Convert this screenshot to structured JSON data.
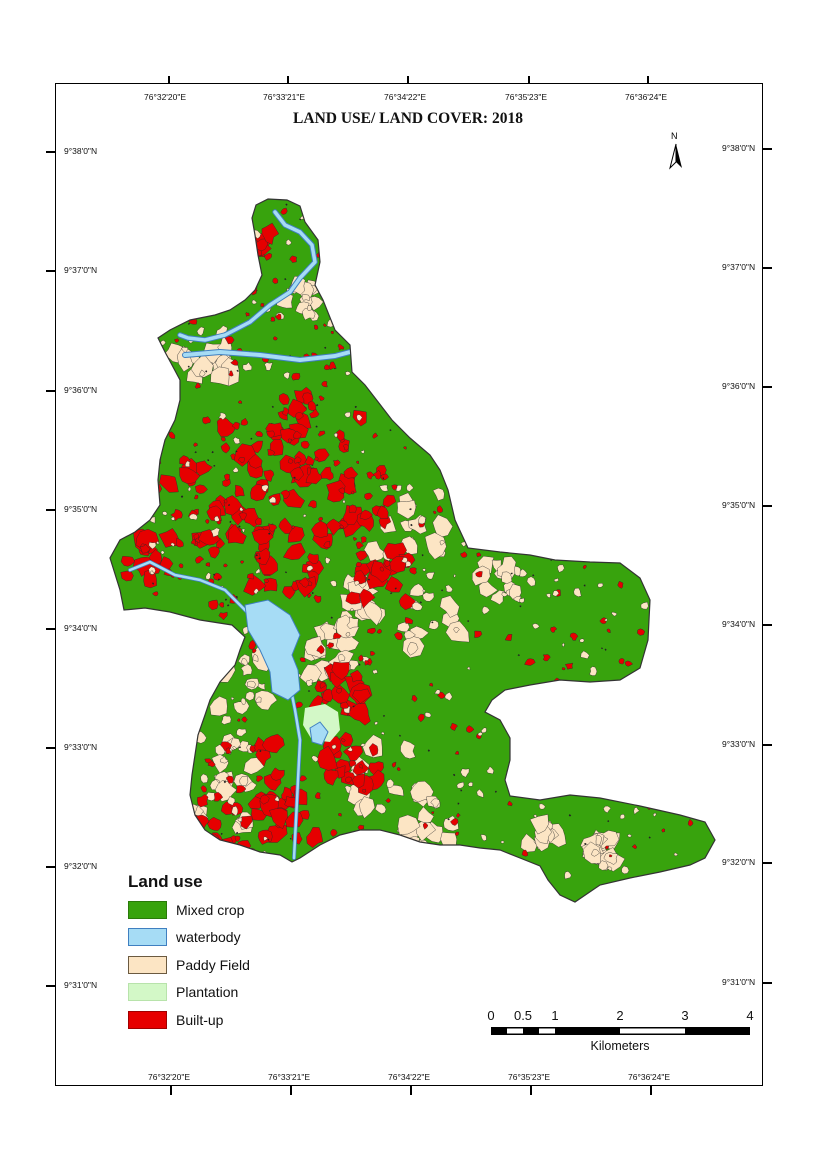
{
  "map": {
    "title": "LAND USE/ LAND COVER: 2018",
    "north_label": "N",
    "longitude_labels": [
      "76°32'20\"E",
      "76°33'21\"E",
      "76°34'22\"E",
      "76°35'23\"E",
      "76°36'24\"E"
    ],
    "latitude_labels": [
      "9°38'0\"N",
      "9°37'0\"N",
      "9°36'0\"N",
      "9°35'0\"N",
      "9°34'0\"N",
      "9°33'0\"N",
      "9°32'0\"N",
      "9°31'0\"N"
    ],
    "legend": {
      "title": "Land use",
      "items": [
        {
          "label": "Mixed crop",
          "color": "#38a30d",
          "border": "#2a7a0a"
        },
        {
          "label": "waterbody",
          "color": "#a6dcf5",
          "border": "#3f7fc0"
        },
        {
          "label": "Paddy Field",
          "color": "#fce5c4",
          "border": "#6b5a40"
        },
        {
          "label": "Plantation",
          "color": "#d3f8c7",
          "border": "#b8e3ab"
        },
        {
          "label": "Built-up",
          "color": "#e60000",
          "border": "#a00000"
        }
      ]
    },
    "scale_bar": {
      "labels": [
        "0",
        "0.5",
        "1",
        "2",
        "3",
        "4"
      ],
      "units": "Kilometers"
    },
    "colors": {
      "mixed_crop": "#38a30d",
      "waterbody": "#a6dcf5",
      "water_edge": "#3f7fc0",
      "paddy": "#fce5c4",
      "plantation": "#d3f8c7",
      "built_up": "#e60000",
      "outline": "#333333"
    }
  }
}
